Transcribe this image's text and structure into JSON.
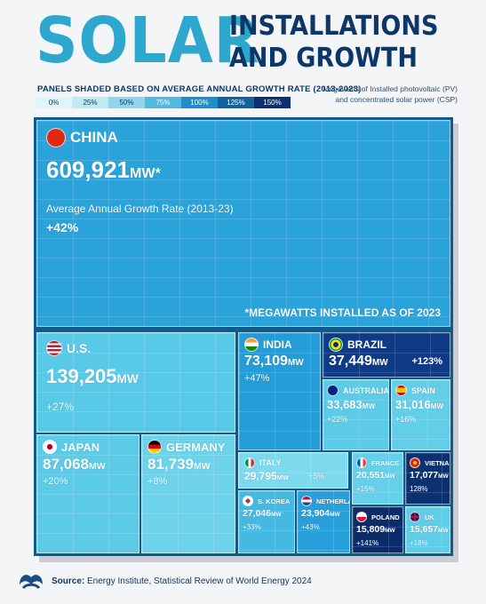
{
  "title": {
    "main": "SOLAR",
    "side_line1": "INSTALLATIONS",
    "side_line2": "AND GROWTH"
  },
  "legend": {
    "title": "PANELS SHADED BASED ON AVERAGE ANNUAL GROWTH RATE (2013-2023)",
    "stops": [
      "0%",
      "25%",
      "50%",
      "75%",
      "100%",
      "125%",
      "150%"
    ],
    "colors": [
      "#dff5fa",
      "#bfeaf4",
      "#8fd6ec",
      "#4fb9e0",
      "#1f8fcc",
      "#15609f",
      "#0c2f70"
    ]
  },
  "unit_note": {
    "line1": "Megawatts of Installed photovoltaic (PV)",
    "line2": "and concentrated solar power (CSP)"
  },
  "chart_data": {
    "type": "treemap",
    "value_unit": "MW",
    "footnote": "*MEGAWATTS INSTALLED AS OF 2023",
    "growth_label": "Average Annual Growth Rate (2013-23)",
    "items": [
      {
        "country": "CHINA",
        "value": "609,921",
        "unit": "MW*",
        "growth": "+42%",
        "flag": "china",
        "color": "#2aa3db"
      },
      {
        "country": "U.S.",
        "value": "139,205",
        "unit": "MW",
        "growth": "+27%",
        "flag": "us",
        "color": "#58c9e6"
      },
      {
        "country": "JAPAN",
        "value": "87,068",
        "unit": "MW",
        "growth": "+20%",
        "flag": "japan",
        "color": "#5ccbe7"
      },
      {
        "country": "GERMANY",
        "value": "81,739",
        "unit": "MW",
        "growth": "+8%",
        "flag": "germany",
        "color": "#6cd3ea"
      },
      {
        "country": "INDIA",
        "value": "73,109",
        "unit": "MW",
        "growth": "+47%",
        "flag": "india",
        "color": "#259cd7"
      },
      {
        "country": "BRAZIL",
        "value": "37,449",
        "unit": "MW",
        "growth": "+123%",
        "flag": "brazil",
        "color": "#0e3a86"
      },
      {
        "country": "AUSTRALIA",
        "value": "33,683",
        "unit": "MW",
        "growth": "+22%",
        "flag": "australia",
        "color": "#5ccbe7"
      },
      {
        "country": "SPAIN",
        "value": "31,016",
        "unit": "MW",
        "growth": "+16%",
        "flag": "spain",
        "color": "#63cee8"
      },
      {
        "country": "ITALY",
        "value": "29,795",
        "unit": "MW",
        "growth": "+5%",
        "flag": "italy",
        "color": "#7cd9ee"
      },
      {
        "country": "S. KOREA",
        "value": "27,046",
        "unit": "MW",
        "growth": "+33%",
        "flag": "skorea",
        "color": "#46b9e2"
      },
      {
        "country": "NETHERLANDS",
        "value": "23,904",
        "unit": "MW",
        "growth": "+43%",
        "flag": "netherlands",
        "color": "#289fd9"
      },
      {
        "country": "FRANCE",
        "value": "20,551",
        "unit": "MW",
        "growth": "+15%",
        "flag": "france",
        "color": "#66cfe9"
      },
      {
        "country": "VIETNAM",
        "value": "17,077",
        "unit": "MW",
        "growth": "128%",
        "flag": "vietnam",
        "color": "#0c3070"
      },
      {
        "country": "POLAND",
        "value": "15,809",
        "unit": "MW",
        "growth": "+141%",
        "flag": "poland",
        "color": "#0b2c68"
      },
      {
        "country": "UK",
        "value": "15,657",
        "unit": "MW",
        "growth": "+18%",
        "flag": "uk",
        "color": "#5fcde8"
      }
    ]
  },
  "source": {
    "label": "Source:",
    "text": "Energy Institute, Statistical Review of World Energy 2024"
  }
}
